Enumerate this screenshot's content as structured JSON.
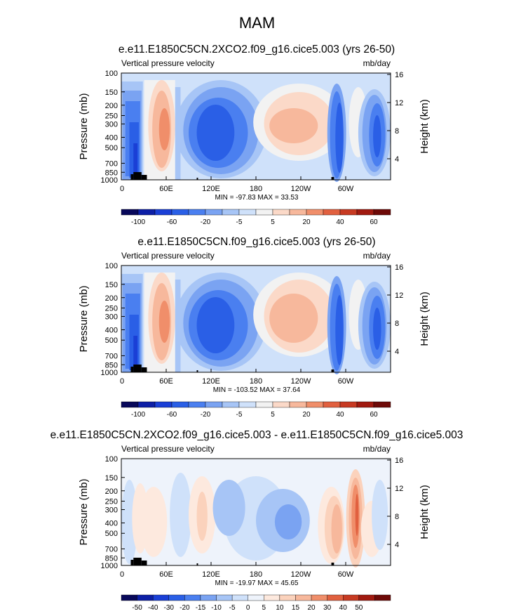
{
  "figure_title": "MAM",
  "colors": {
    "cb1": [
      "#08085a",
      "#0d1fa6",
      "#1a3fd6",
      "#2a5fe6",
      "#4a7ff0",
      "#7aa3f2",
      "#a7c5f6",
      "#cfe1fa",
      "#f2f2f2",
      "#fbd9c8",
      "#f7b89c",
      "#f08e6a",
      "#e1603f",
      "#c73a22",
      "#a11a10",
      "#6e0a08"
    ],
    "cb2": [
      "#08085a",
      "#0d1fa6",
      "#1a3fd6",
      "#2a5fe6",
      "#4a7ff0",
      "#7aa3f2",
      "#a7c5f6",
      "#cfe1fa",
      "#eef3fb",
      "#fde9de",
      "#fbd2bc",
      "#f7b89c",
      "#f08e6a",
      "#e1603f",
      "#c73a22",
      "#a11a10",
      "#6e0a08"
    ]
  },
  "chart_data": [
    {
      "type": "heatmap",
      "title": "e.e11.E1850C5CN.2XCO2.f09_g16.cice5.003 (yrs 26-50)",
      "left_label": "Vertical pressure velocity",
      "right_label": "mb/day",
      "ylabel": "Pressure (mb)",
      "ylabel_right": "Height (km)",
      "xticks": [
        "0",
        "60E",
        "120E",
        "180",
        "120W",
        "60W"
      ],
      "yticks": [
        "100",
        "150",
        "200",
        "250",
        "300",
        "400",
        "500",
        "700",
        "850",
        "1000"
      ],
      "yticks_right": [
        "16",
        "12",
        "8",
        "4"
      ],
      "stats": "MIN = -97.83   MAX =  33.53",
      "colorbar_labels": [
        "-100",
        "-60",
        "-20",
        "-5",
        "5",
        "20",
        "40",
        "60"
      ],
      "ylim": [
        1000,
        100
      ],
      "xlim": [
        0,
        360
      ]
    },
    {
      "type": "heatmap",
      "title": "e.e11.E1850C5CN.f09_g16.cice5.003 (yrs 26-50)",
      "left_label": "Vertical pressure velocity",
      "right_label": "mb/day",
      "ylabel": "Pressure (mb)",
      "ylabel_right": "Height (km)",
      "xticks": [
        "0",
        "60E",
        "120E",
        "180",
        "120W",
        "60W"
      ],
      "yticks": [
        "100",
        "150",
        "200",
        "250",
        "300",
        "400",
        "500",
        "700",
        "850",
        "1000"
      ],
      "yticks_right": [
        "16",
        "12",
        "8",
        "4"
      ],
      "stats": "MIN = -103.52   MAX =  37.64",
      "colorbar_labels": [
        "-100",
        "-60",
        "-20",
        "-5",
        "5",
        "20",
        "40",
        "60"
      ],
      "ylim": [
        1000,
        100
      ],
      "xlim": [
        0,
        360
      ]
    },
    {
      "type": "heatmap",
      "title": "e.e11.E1850C5CN.2XCO2.f09_g16.cice5.003 - e.e11.E1850C5CN.f09_g16.cice5.003",
      "left_label": "Vertical pressure velocity",
      "right_label": "mb/day",
      "ylabel": "Pressure (mb)",
      "ylabel_right": "Height (km)",
      "xticks": [
        "0",
        "60E",
        "120E",
        "180",
        "120W",
        "60W"
      ],
      "yticks": [
        "100",
        "150",
        "200",
        "250",
        "300",
        "400",
        "500",
        "700",
        "850",
        "1000"
      ],
      "yticks_right": [
        "16",
        "12",
        "8",
        "4"
      ],
      "stats": "MIN = -19.97   MAX =  45.65",
      "colorbar_labels": [
        "-50",
        "-40",
        "-30",
        "-20",
        "-15",
        "-10",
        "-5",
        "0",
        "5",
        "10",
        "15",
        "20",
        "30",
        "40",
        "50"
      ],
      "ylim": [
        1000,
        100
      ],
      "xlim": [
        0,
        360
      ]
    }
  ]
}
